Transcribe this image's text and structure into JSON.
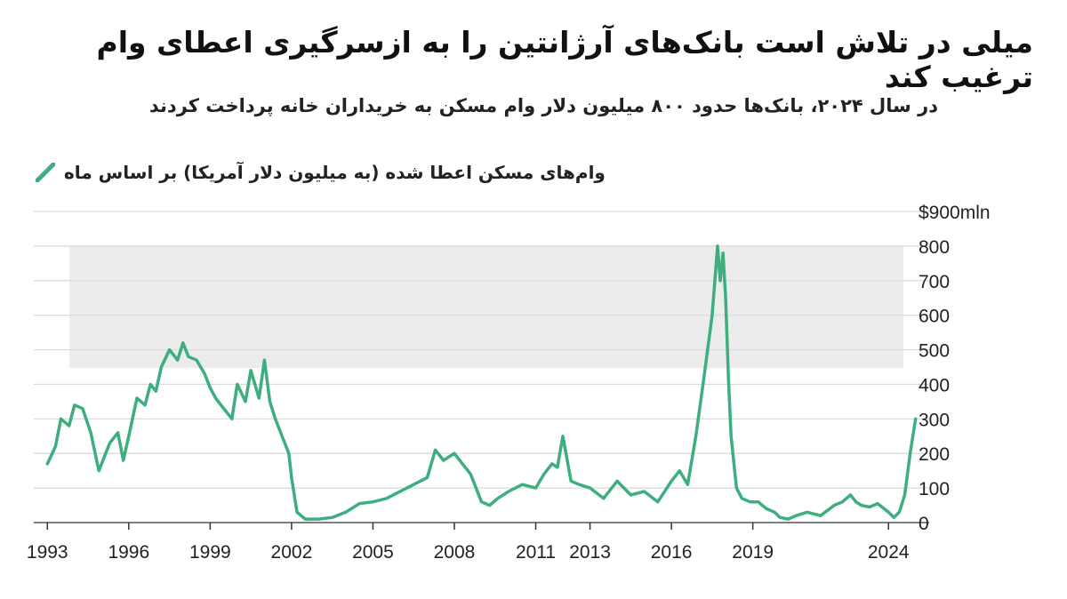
{
  "title": "میلی در تلاش است بانک‌های آرژانتین را به ازسرگیری اعطای وام ترغیب کند",
  "subtitle": "در سال ۲۰۲۴، بانک‌ها حدود ۸۰۰ میلیون دلار وام مسکن به خریداران خانه پرداخت کردند",
  "colors": {
    "line": "#3dae7e",
    "grid": "#d9d9d9",
    "text": "#222222"
  },
  "chart_data": {
    "type": "line",
    "title": "میلی در تلاش است بانک‌های آرژانتین را به ازسرگیری اعطای وام ترغیب کند",
    "ylabel": "",
    "xlabel": "",
    "ylim": [
      0,
      900
    ],
    "xlim": [
      1992.5,
      2025.5
    ],
    "grid": true,
    "legend_position": "top-left",
    "x_ticks": [
      "1993",
      "1996",
      "1999",
      "2002",
      "2005",
      "2008",
      "2011",
      "2013",
      "2016",
      "2019",
      "2024"
    ],
    "y_ticks": [
      {
        "value": 0,
        "label": "0"
      },
      {
        "value": 100,
        "label": "100"
      },
      {
        "value": 200,
        "label": "200"
      },
      {
        "value": 300,
        "label": "300"
      },
      {
        "value": 400,
        "label": "400"
      },
      {
        "value": 500,
        "label": "500"
      },
      {
        "value": 600,
        "label": "600"
      },
      {
        "value": 700,
        "label": "700"
      },
      {
        "value": 800,
        "label": "800"
      },
      {
        "value": 900,
        "label": "$900mln"
      }
    ],
    "series": [
      {
        "name": "وام‌های مسکن اعطا شده  (به میلیون دلار آمریکا) بر اساس ماه",
        "x": [
          1993.0,
          1993.3,
          1993.5,
          1993.8,
          1994.0,
          1994.3,
          1994.6,
          1994.9,
          1995.1,
          1995.3,
          1995.6,
          1995.8,
          1996.0,
          1996.3,
          1996.6,
          1996.8,
          1997.0,
          1997.2,
          1997.5,
          1997.8,
          1998.0,
          1998.2,
          1998.5,
          1998.8,
          1999.0,
          1999.2,
          1999.5,
          1999.8,
          2000.0,
          2000.3,
          2000.5,
          2000.8,
          2001.0,
          2001.2,
          2001.4,
          2001.6,
          2001.9,
          2002.0,
          2002.2,
          2002.5,
          2003.0,
          2003.5,
          2004.0,
          2004.5,
          2005.0,
          2005.5,
          2006.0,
          2006.5,
          2007.0,
          2007.3,
          2007.6,
          2008.0,
          2008.3,
          2008.6,
          2009.0,
          2009.3,
          2009.6,
          2010.0,
          2010.5,
          2011.0,
          2011.3,
          2011.6,
          2011.8,
          2012.0,
          2012.3,
          2012.6,
          2013.0,
          2013.5,
          2014.0,
          2014.5,
          2015.0,
          2015.5,
          2016.0,
          2016.3,
          2016.6,
          2016.9,
          2017.2,
          2017.5,
          2017.7,
          2017.8,
          2017.9,
          2018.0,
          2018.1,
          2018.2,
          2018.4,
          2018.6,
          2018.9,
          2019.2,
          2019.5,
          2019.8,
          2020.0,
          2020.3,
          2020.6,
          2021.0,
          2021.5,
          2022.0,
          2022.3,
          2022.6,
          2022.8,
          2023.0,
          2023.3,
          2023.6,
          2024.0,
          2024.2,
          2024.4,
          2024.6,
          2024.8,
          2025.0
        ],
        "values": [
          170,
          220,
          300,
          280,
          340,
          330,
          260,
          150,
          190,
          230,
          260,
          180,
          250,
          360,
          340,
          400,
          380,
          450,
          500,
          470,
          520,
          480,
          470,
          430,
          390,
          360,
          330,
          300,
          400,
          350,
          440,
          360,
          470,
          350,
          300,
          260,
          200,
          130,
          30,
          10,
          10,
          15,
          30,
          55,
          60,
          70,
          90,
          110,
          130,
          210,
          180,
          200,
          170,
          140,
          60,
          50,
          70,
          90,
          110,
          100,
          140,
          170,
          160,
          250,
          120,
          110,
          100,
          70,
          120,
          80,
          90,
          60,
          120,
          150,
          110,
          250,
          420,
          600,
          800,
          700,
          780,
          650,
          420,
          250,
          100,
          70,
          60,
          60,
          40,
          30,
          15,
          10,
          20,
          30,
          20,
          50,
          60,
          80,
          60,
          50,
          45,
          55,
          30,
          15,
          30,
          80,
          200,
          300
        ]
      }
    ]
  }
}
